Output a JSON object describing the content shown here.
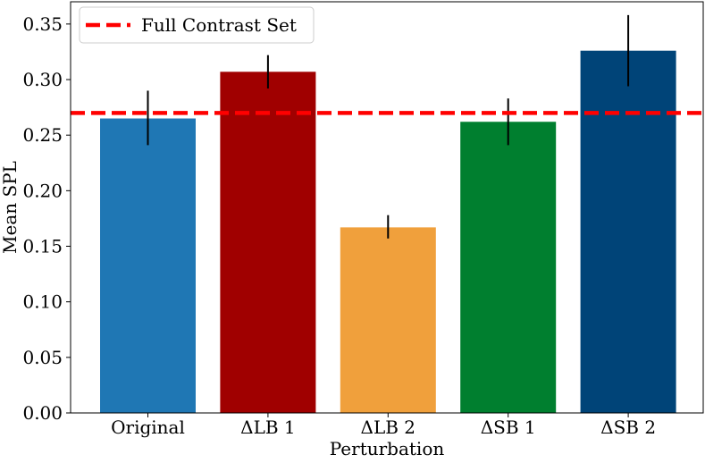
{
  "chart_data": {
    "type": "bar",
    "xlabel": "Perturbation",
    "ylabel": "Mean SPL",
    "ylim": [
      0,
      0.37
    ],
    "yticks": [
      0.0,
      0.05,
      0.1,
      0.15,
      0.2,
      0.25,
      0.3,
      0.35
    ],
    "ytick_labels": [
      "0.00",
      "0.05",
      "0.10",
      "0.15",
      "0.20",
      "0.25",
      "0.30",
      "0.35"
    ],
    "categories": [
      "Original",
      "ΔLB 1",
      "ΔLB 2",
      "ΔSB 1",
      "ΔSB 2"
    ],
    "values": [
      0.265,
      0.307,
      0.167,
      0.262,
      0.326
    ],
    "error_low": [
      0.241,
      0.292,
      0.157,
      0.241,
      0.294
    ],
    "error_high": [
      0.29,
      0.322,
      0.178,
      0.283,
      0.358
    ],
    "bar_colors": [
      "#1f77b4",
      "#a00000",
      "#f0a03c",
      "#007f2f",
      "#004478"
    ],
    "reference_line": {
      "label": "Full Contrast Set",
      "value": 0.27,
      "color": "#ff0000",
      "style": "dashed"
    },
    "legend": {
      "placement": "top-left",
      "entries": [
        "Full Contrast Set"
      ]
    },
    "grid": false
  }
}
